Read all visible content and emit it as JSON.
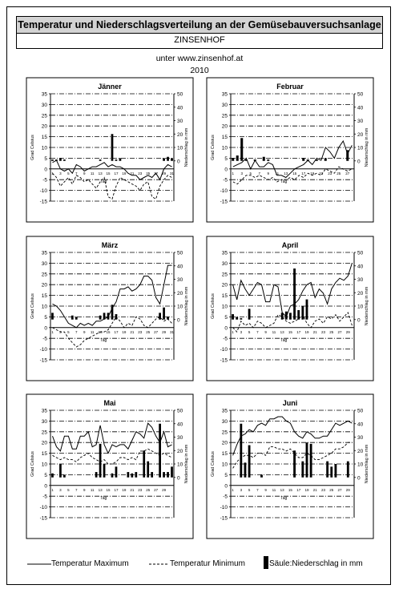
{
  "header": {
    "title": "Temperatur und Niederschlagsverteilung an der Gemüsebauversuchsanlage",
    "location": "ZINSENHOF",
    "source": "unter www.zinsenhof.at",
    "year": "2010"
  },
  "legend": {
    "max_label": "Temperatur Maximum",
    "min_label": "Temperatur Minimum",
    "precip_label": "Säule:Niederschlag in mm"
  },
  "axes": {
    "ylabel_left": "Grad Celsius",
    "ylabel_right": "Niederschlag in mm",
    "xlabel": "Tag",
    "y_ticks": [
      "35",
      "30",
      "25",
      "20",
      "15",
      "10",
      "5",
      "0",
      "-5",
      "-10",
      "-15"
    ],
    "y2_ticks": [
      "50",
      "40",
      "30",
      "20",
      "10",
      "0"
    ]
  },
  "colors": {
    "line": "#000000",
    "grid": "#000000",
    "title_bg": "#d3d3d3"
  },
  "chart_data": [
    {
      "type": "line",
      "title": "Jänner",
      "ylim": [
        -15,
        35
      ],
      "y2lim": [
        -30,
        50
      ],
      "grid": true,
      "x_ticks": [
        "1",
        "3",
        "5",
        "7",
        "9",
        "11",
        "13",
        "15",
        "17",
        "19",
        "21",
        "23",
        "25",
        "27",
        "29",
        "31"
      ],
      "series": [
        {
          "name": "Temperatur Maximum",
          "values": [
            3,
            4,
            0,
            -1,
            0,
            -2,
            2,
            1,
            -1,
            0,
            1,
            1,
            2,
            3,
            1,
            2,
            1,
            1,
            0,
            -2,
            -3,
            -3,
            -5,
            -4,
            -3,
            -4,
            -2,
            -5,
            0,
            2,
            1
          ]
        },
        {
          "name": "Temperatur Minimum",
          "values": [
            -2,
            -4,
            -8,
            -6,
            -4,
            -7,
            -3,
            -4,
            -6,
            -5,
            -7,
            -9,
            -6,
            -4,
            -13,
            -14,
            -8,
            -4,
            -5,
            -6,
            -7,
            -8,
            -10,
            -7,
            -6,
            -13,
            -14,
            -8,
            -5,
            -3,
            -4
          ]
        },
        {
          "name": "Säule:Niederschlag in mm",
          "values": [
            1,
            1,
            2,
            1,
            0,
            0,
            0,
            0,
            0,
            0,
            0,
            0,
            1,
            0,
            0,
            20,
            1,
            2,
            0,
            0,
            0,
            0,
            0,
            0,
            0,
            0,
            0,
            0,
            2,
            3,
            2
          ]
        }
      ]
    },
    {
      "type": "line",
      "title": "Februar",
      "ylim": [
        -15,
        35
      ],
      "y2lim": [
        -30,
        50
      ],
      "grid": true,
      "x_ticks": [
        "1",
        "3",
        "5",
        "7",
        "9",
        "11",
        "13",
        "15",
        "17",
        "19",
        "21",
        "23",
        "25",
        "27"
      ],
      "series": [
        {
          "name": "Temperatur Maximum",
          "values": [
            1,
            2,
            3,
            5,
            0,
            4,
            1,
            1,
            3,
            2,
            -3,
            -3,
            -4,
            -2,
            0,
            1,
            2,
            4,
            2,
            5,
            4,
            10,
            8,
            5,
            10,
            13,
            7,
            11
          ]
        },
        {
          "name": "Temperatur Minimum",
          "values": [
            -6,
            -7,
            -5,
            -3,
            -3,
            -4,
            -3,
            -4,
            -5,
            -4,
            -6,
            -5,
            -5,
            -4,
            -5,
            -3,
            -4,
            -2,
            -3,
            -2,
            -3,
            0,
            -1,
            -2,
            1,
            0,
            -1,
            0
          ]
        },
        {
          "name": "Säule:Niederschlag in mm",
          "values": [
            2,
            4,
            17,
            1,
            0,
            1,
            0,
            3,
            1,
            0,
            0,
            0,
            0,
            0,
            0,
            0,
            2,
            1,
            0,
            1,
            0,
            2,
            0,
            0,
            0,
            0,
            8,
            0
          ]
        }
      ]
    },
    {
      "type": "line",
      "title": "März",
      "ylim": [
        -15,
        35
      ],
      "y2lim": [
        -30,
        50
      ],
      "grid": true,
      "x_ticks": [
        "1",
        "3",
        "5",
        "7",
        "9",
        "11",
        "13",
        "15",
        "17",
        "19",
        "21",
        "23",
        "25",
        "27",
        "29",
        "31"
      ],
      "series": [
        {
          "name": "Temperatur Maximum",
          "values": [
            11,
            10,
            8,
            5,
            2,
            1,
            0,
            2,
            1,
            2,
            1,
            3,
            3,
            4,
            5,
            9,
            12,
            18,
            18,
            19,
            17,
            18,
            20,
            24,
            24,
            22,
            14,
            11,
            20,
            29,
            29
          ]
        },
        {
          "name": "Temperatur Minimum",
          "values": [
            0,
            -1,
            -2,
            -2,
            -5,
            -7,
            -9,
            -8,
            -6,
            -5,
            -4,
            -3,
            -2,
            -2,
            -1,
            2,
            5,
            3,
            0,
            2,
            1,
            5,
            4,
            1,
            0,
            2,
            4,
            5,
            3,
            4,
            2
          ]
        },
        {
          "name": "Säule:Niederschlag in mm",
          "values": [
            5,
            0,
            0,
            0,
            0,
            3,
            2,
            0,
            0,
            0,
            0,
            0,
            3,
            5,
            5,
            11,
            4,
            0,
            0,
            0,
            0,
            0,
            0,
            0,
            0,
            0,
            0,
            5,
            9,
            2,
            0
          ]
        }
      ]
    },
    {
      "type": "line",
      "title": "April",
      "ylim": [
        -15,
        35
      ],
      "y2lim": [
        -30,
        50
      ],
      "grid": true,
      "x_ticks": [
        "1",
        "3",
        "5",
        "7",
        "9",
        "11",
        "13",
        "15",
        "17",
        "19",
        "21",
        "23",
        "25",
        "27",
        "29"
      ],
      "series": [
        {
          "name": "Temperatur Maximum",
          "values": [
            20,
            13,
            22,
            18,
            15,
            18,
            21,
            20,
            12,
            12,
            20,
            19,
            7,
            5,
            10,
            11,
            13,
            17,
            20,
            21,
            14,
            18,
            16,
            11,
            18,
            21,
            23,
            22,
            24,
            30
          ]
        },
        {
          "name": "Temperatur Minimum",
          "values": [
            0,
            -2,
            3,
            1,
            2,
            0,
            3,
            2,
            0,
            1,
            2,
            6,
            5,
            3,
            2,
            3,
            4,
            6,
            2,
            0,
            3,
            4,
            2,
            5,
            4,
            6,
            3,
            5,
            7,
            1
          ]
        },
        {
          "name": "Säule:Niederschlag in mm",
          "values": [
            4,
            2,
            1,
            0,
            8,
            0,
            0,
            0,
            0,
            0,
            0,
            0,
            5,
            6,
            5,
            38,
            7,
            10,
            15,
            0,
            0,
            0,
            0,
            0,
            0,
            0,
            0,
            0,
            0,
            0
          ]
        }
      ]
    },
    {
      "type": "line",
      "title": "Mai",
      "ylim": [
        -15,
        35
      ],
      "y2lim": [
        -30,
        50
      ],
      "grid": true,
      "x_ticks": [
        "1",
        "3",
        "5",
        "7",
        "9",
        "11",
        "13",
        "15",
        "17",
        "19",
        "21",
        "23",
        "25",
        "27",
        "29"
      ],
      "series": [
        {
          "name": "Temperatur Maximum",
          "values": [
            23,
            18,
            16,
            23,
            23,
            17,
            17,
            23,
            23,
            25,
            18,
            19,
            28,
            19,
            15,
            19,
            18,
            19,
            19,
            17,
            21,
            25,
            24,
            22,
            29,
            27,
            23,
            20,
            25,
            18,
            19
          ]
        },
        {
          "name": "Temperatur Minimum",
          "values": [
            14,
            13,
            12,
            13,
            12,
            12,
            11,
            13,
            14,
            15,
            13,
            12,
            11,
            12,
            10,
            10,
            11,
            13,
            13,
            12,
            13,
            12,
            16,
            16,
            17,
            16,
            15,
            14,
            15,
            14,
            13
          ]
        },
        {
          "name": "Säule:Niederschlag in mm",
          "values": [
            3,
            0,
            10,
            2,
            0,
            0,
            0,
            0,
            0,
            0,
            0,
            4,
            25,
            10,
            0,
            3,
            8,
            0,
            0,
            4,
            3,
            4,
            0,
            20,
            12,
            4,
            0,
            40,
            4,
            4,
            8
          ]
        }
      ]
    },
    {
      "type": "line",
      "title": "Juni",
      "ylim": [
        -15,
        35
      ],
      "y2lim": [
        -30,
        50
      ],
      "grid": true,
      "x_ticks": [
        "1",
        "3",
        "5",
        "7",
        "9",
        "11",
        "13",
        "15",
        "17",
        "19",
        "21",
        "23",
        "25",
        "27",
        "29"
      ],
      "series": [
        {
          "name": "Temperatur Maximum",
          "values": [
            14,
            19,
            23,
            24,
            26,
            25,
            28,
            29,
            28,
            31,
            31,
            32,
            32,
            30,
            29,
            25,
            23,
            22,
            25,
            24,
            22,
            22,
            23,
            23,
            26,
            29,
            28,
            29,
            30,
            29
          ]
        },
        {
          "name": "Temperatur Minimum",
          "values": [
            8,
            11,
            13,
            14,
            14,
            13,
            15,
            15,
            14,
            18,
            18,
            17,
            17,
            16,
            17,
            15,
            13,
            13,
            15,
            14,
            12,
            12,
            13,
            14,
            15,
            17,
            17,
            18,
            20,
            20
          ]
        },
        {
          "name": "Säule:Niederschlag in mm",
          "values": [
            0,
            0,
            40,
            11,
            24,
            0,
            0,
            2,
            0,
            0,
            0,
            0,
            0,
            0,
            0,
            20,
            0,
            12,
            26,
            25,
            0,
            0,
            0,
            12,
            8,
            10,
            0,
            0,
            12,
            0
          ]
        }
      ]
    }
  ]
}
